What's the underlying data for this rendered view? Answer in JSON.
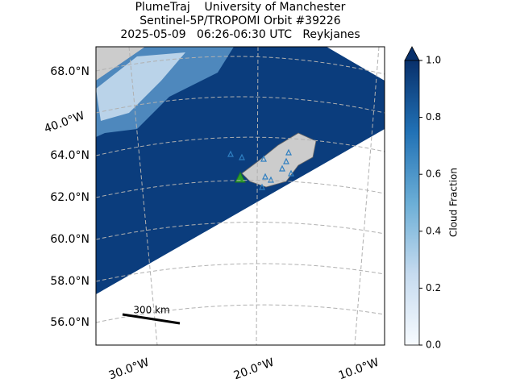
{
  "title": {
    "line1": "PlumeTraj    University of Manchester",
    "line2": "Sentinel-5P/TROPOMI Orbit #39226",
    "line3": "2025-05-09   06:26-06:30 UTC   Reykjanes"
  },
  "map": {
    "lat_labels": [
      "68.0°N",
      "64.0°N",
      "62.0°N",
      "60.0°N",
      "58.0°N",
      "56.0°N"
    ],
    "lon_labels": [
      "40.0°W",
      "30.0°W",
      "20.0°W",
      "10.0°W"
    ],
    "scale_bar": "300 km"
  },
  "colorbar": {
    "label": "Cloud Fraction",
    "lim": [
      0,
      1
    ],
    "ticks": [
      {
        "value": 0,
        "label": "0.0"
      },
      {
        "value": 0.2,
        "label": "0.2"
      },
      {
        "value": 0.4,
        "label": "0.4"
      },
      {
        "value": 0.6,
        "label": "0.6"
      },
      {
        "value": 0.8,
        "label": "0.8"
      },
      {
        "value": 1,
        "label": "1.0"
      }
    ]
  }
}
